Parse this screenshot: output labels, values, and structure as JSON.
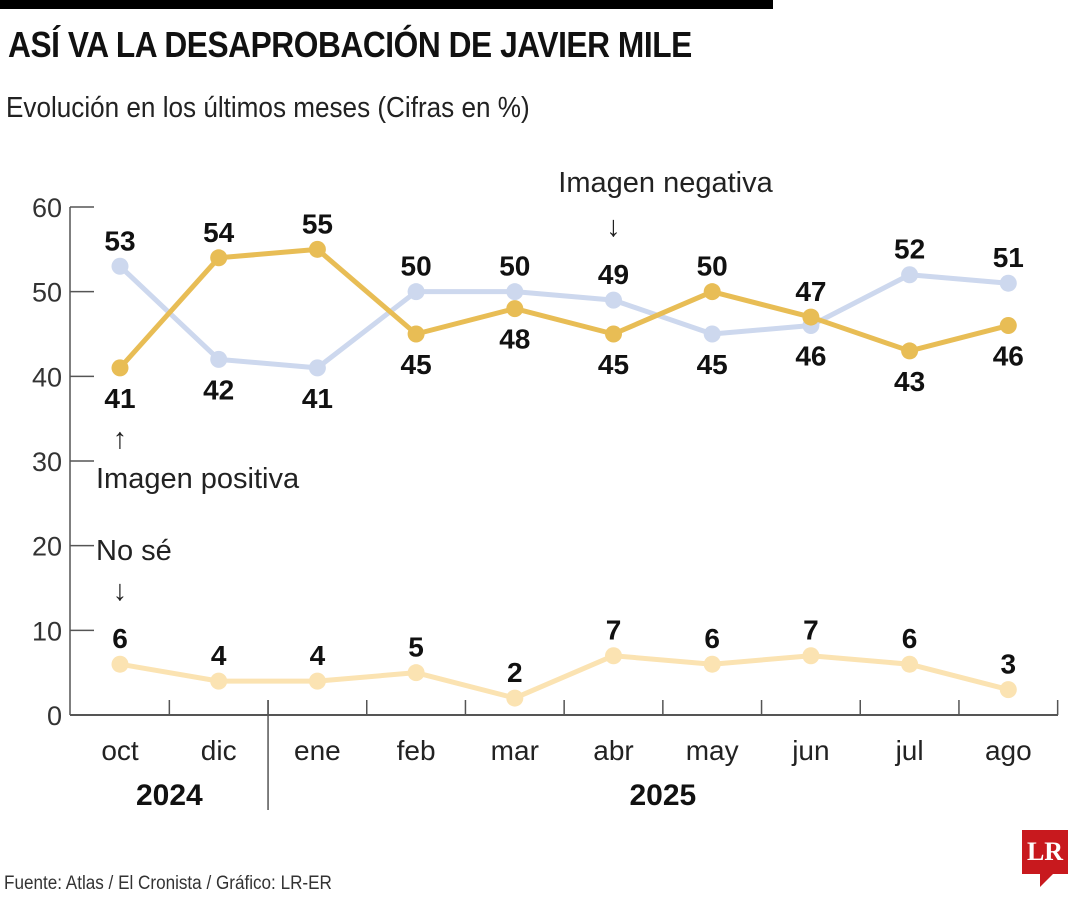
{
  "header": {
    "title": "ASÍ VA LA DESAPROBACIÓN DE JAVIER MILE",
    "subtitle": "Evolución en los últimos meses (Cifras en %)"
  },
  "footer": {
    "source": "Fuente: Atlas / El Cronista / Gráfico: LR-ER",
    "logo_text": "LR"
  },
  "colors": {
    "negativa": "#cdd8ee",
    "positiva": "#e8bd55",
    "no_se": "#fbe3b2",
    "axis": "#555555",
    "logo": "#c8191e"
  },
  "chart_data": {
    "type": "line",
    "title": "ASÍ VA LA DESAPROBACIÓN DE JAVIER MILE",
    "subtitle": "Evolución en los últimos meses (Cifras en %)",
    "xlabel": "",
    "ylabel": "",
    "categories": [
      "oct",
      "dic",
      "ene",
      "feb",
      "mar",
      "abr",
      "may",
      "jun",
      "jul",
      "ago"
    ],
    "year_groups": [
      {
        "label": "2024",
        "months": [
          "oct",
          "dic"
        ]
      },
      {
        "label": "2025",
        "months": [
          "ene",
          "feb",
          "mar",
          "abr",
          "may",
          "jun",
          "jul",
          "ago"
        ]
      }
    ],
    "ylim": [
      0,
      60
    ],
    "yticks": [
      0,
      10,
      20,
      30,
      40,
      50,
      60
    ],
    "grid": false,
    "series": [
      {
        "name": "Imagen negativa",
        "key": "negativa",
        "values": [
          53,
          42,
          41,
          50,
          50,
          49,
          45,
          46,
          52,
          51
        ],
        "label_pos": [
          "above",
          "below",
          "below",
          "above",
          "above",
          "above",
          "below",
          "below",
          "above",
          "above"
        ]
      },
      {
        "name": "Imagen positiva",
        "key": "positiva",
        "values": [
          41,
          54,
          55,
          45,
          48,
          45,
          50,
          47,
          43,
          46
        ],
        "label_pos": [
          "below",
          "above",
          "above",
          "below",
          "below",
          "below",
          "above",
          "above",
          "below",
          "below"
        ]
      },
      {
        "name": "No sé",
        "key": "no_se",
        "values": [
          6,
          4,
          4,
          5,
          2,
          7,
          6,
          7,
          6,
          3
        ],
        "label_pos": [
          "above",
          "above",
          "above",
          "above",
          "above",
          "above",
          "above",
          "above",
          "above",
          "above"
        ]
      }
    ],
    "annotations": [
      {
        "text": "Imagen negativa",
        "arrow": "↓",
        "series": "negativa",
        "category": "abr"
      },
      {
        "text": "Imagen positiva",
        "arrow": "↑",
        "series": "positiva",
        "category": "oct"
      },
      {
        "text": "No sé",
        "arrow": "↓",
        "series": "no_se",
        "category": "oct"
      }
    ]
  }
}
